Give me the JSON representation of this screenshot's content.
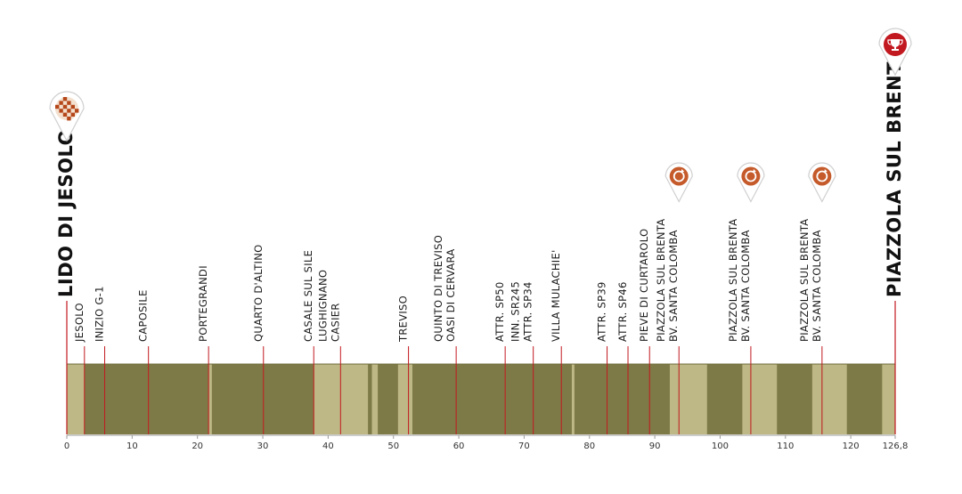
{
  "chart_data": {
    "type": "area",
    "x_total": 126.8,
    "xlim": [
      0,
      126.8
    ],
    "x_ticks": [
      {
        "value": 0,
        "label": "0"
      },
      {
        "value": 10,
        "label": "10"
      },
      {
        "value": 20,
        "label": "20"
      },
      {
        "value": 30,
        "label": "30"
      },
      {
        "value": 40,
        "label": "40"
      },
      {
        "value": 50,
        "label": "50"
      },
      {
        "value": 60,
        "label": "60"
      },
      {
        "value": 70,
        "label": "70"
      },
      {
        "value": 80,
        "label": "80"
      },
      {
        "value": 90,
        "label": "90"
      },
      {
        "value": 100,
        "label": "100"
      },
      {
        "value": 110,
        "label": "110"
      },
      {
        "value": 120,
        "label": "120"
      },
      {
        "value": 126.8,
        "label": "126,8"
      }
    ],
    "start": {
      "name": "LIDO DI JESOLO",
      "km": 0,
      "icon": "checkered-flag-icon"
    },
    "finish": {
      "name": "PIAZZOLA SUL BRENTA",
      "km": 126.8,
      "icon": "trophy-icon"
    },
    "waypoints": [
      {
        "km": 2.7,
        "lines": [
          "JESOLO"
        ]
      },
      {
        "km": 5.8,
        "lines": [
          "INIZIO G-1"
        ]
      },
      {
        "km": 12.5,
        "lines": [
          "CAPOSILE"
        ]
      },
      {
        "km": 21.7,
        "lines": [
          "PORTEGRANDI"
        ]
      },
      {
        "km": 30.1,
        "lines": [
          "QUARTO D'ALTINO"
        ]
      },
      {
        "km": 37.8,
        "lines": [
          "CASALE SUL SILE"
        ]
      },
      {
        "km": 41.9,
        "lines": [
          "LUGHIGNANO",
          "CASIER"
        ]
      },
      {
        "km": 52.3,
        "lines": [
          "TREVISO"
        ]
      },
      {
        "km": 59.6,
        "lines": [
          "QUINTO DI TREVISO",
          "OASI DI CERVARA"
        ]
      },
      {
        "km": 67.1,
        "lines": [
          "ATTR. SP50"
        ]
      },
      {
        "km": 71.4,
        "lines": [
          "INN. SR245",
          "ATTR. SP34"
        ]
      },
      {
        "km": 75.7,
        "lines": [
          "VILLA MULACHIE'"
        ]
      },
      {
        "km": 82.7,
        "lines": [
          "ATTR. SP39"
        ]
      },
      {
        "km": 85.9,
        "lines": [
          "ATTR. SP46"
        ]
      },
      {
        "km": 89.2,
        "lines": [
          "PIEVE DI CURTAROLO"
        ]
      },
      {
        "km": 93.7,
        "lines": [
          "PIAZZOLA SUL BRENTA",
          "BV. SANTA COLOMBA"
        ],
        "icon": "lap-circuit-icon"
      },
      {
        "km": 104.7,
        "lines": [
          "PIAZZOLA SUL BRENTA",
          "BV. SANTA COLOMBA"
        ],
        "icon": "lap-circuit-icon"
      },
      {
        "km": 115.6,
        "lines": [
          "PIAZZOLA SUL BRENTA",
          "BV. SANTA COLOMBA"
        ],
        "icon": "lap-circuit-icon"
      }
    ],
    "segments": [
      {
        "from": 0,
        "to": 2.7,
        "tone": "light"
      },
      {
        "from": 2.7,
        "to": 21.7,
        "tone": "dark"
      },
      {
        "from": 21.7,
        "to": 22.2,
        "tone": "light"
      },
      {
        "from": 22.2,
        "to": 37.8,
        "tone": "dark"
      },
      {
        "from": 37.8,
        "to": 46.1,
        "tone": "light"
      },
      {
        "from": 46.1,
        "to": 46.7,
        "tone": "dark"
      },
      {
        "from": 46.7,
        "to": 47.6,
        "tone": "light"
      },
      {
        "from": 47.6,
        "to": 50.7,
        "tone": "dark"
      },
      {
        "from": 50.7,
        "to": 52.9,
        "tone": "light"
      },
      {
        "from": 52.9,
        "to": 77.3,
        "tone": "dark"
      },
      {
        "from": 77.3,
        "to": 77.7,
        "tone": "light"
      },
      {
        "from": 77.7,
        "to": 92.3,
        "tone": "dark"
      },
      {
        "from": 92.3,
        "to": 98.0,
        "tone": "light"
      },
      {
        "from": 98.0,
        "to": 103.4,
        "tone": "dark"
      },
      {
        "from": 103.4,
        "to": 108.7,
        "tone": "light"
      },
      {
        "from": 108.7,
        "to": 114.1,
        "tone": "dark"
      },
      {
        "from": 114.1,
        "to": 119.4,
        "tone": "light"
      },
      {
        "from": 119.4,
        "to": 124.8,
        "tone": "dark"
      },
      {
        "from": 124.8,
        "to": 126.8,
        "tone": "light"
      }
    ],
    "colors": {
      "light": "#bdb885",
      "dark": "#7e7a47",
      "marker": "#c2181f",
      "axis": "#9a9a9a"
    }
  }
}
